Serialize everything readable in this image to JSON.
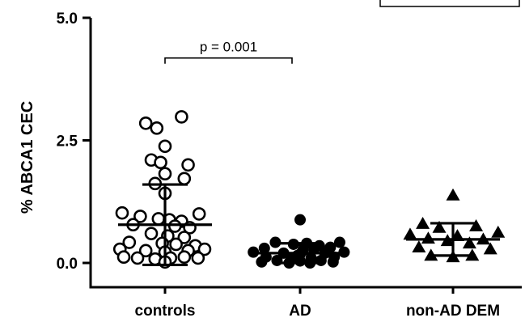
{
  "chart_data": {
    "type": "scatter",
    "ylabel": "% ABCA1 CEC",
    "ylim": [
      0,
      5.0
    ],
    "yticks": [
      {
        "value": 0.0,
        "label": "0.0"
      },
      {
        "value": 2.5,
        "label": "2.5"
      },
      {
        "value": 5.0,
        "label": "5.0"
      }
    ],
    "categories": [
      "controls",
      "AD",
      "non-AD DEM"
    ],
    "annotation": {
      "text": "p = 0.001",
      "from": "controls",
      "to": "AD",
      "y": 4.18
    },
    "series": [
      {
        "category": "controls",
        "marker": "circle-open",
        "mean": 0.78,
        "sd": 0.82,
        "points": [
          [
            2.98,
            0.3
          ],
          [
            2.85,
            -0.35
          ],
          [
            2.75,
            -0.15
          ],
          [
            2.38,
            0.0
          ],
          [
            2.1,
            -0.25
          ],
          [
            2.05,
            -0.08
          ],
          [
            2.0,
            0.42
          ],
          [
            1.82,
            0.0
          ],
          [
            1.72,
            0.35
          ],
          [
            1.62,
            -0.18
          ],
          [
            1.42,
            0.0
          ],
          [
            1.02,
            -0.78
          ],
          [
            1.0,
            0.62
          ],
          [
            0.95,
            -0.45
          ],
          [
            0.9,
            -0.12
          ],
          [
            0.88,
            0.08
          ],
          [
            0.85,
            0.3
          ],
          [
            0.78,
            -0.58
          ],
          [
            0.75,
            0.18
          ],
          [
            0.72,
            0.45
          ],
          [
            0.6,
            -0.25
          ],
          [
            0.55,
            0.05
          ],
          [
            0.52,
            0.35
          ],
          [
            0.42,
            -0.65
          ],
          [
            0.4,
            -0.05
          ],
          [
            0.38,
            0.2
          ],
          [
            0.35,
            0.55
          ],
          [
            0.28,
            -0.82
          ],
          [
            0.25,
            -0.35
          ],
          [
            0.22,
            0.0
          ],
          [
            0.25,
            0.42
          ],
          [
            0.28,
            0.72
          ],
          [
            0.12,
            -0.75
          ],
          [
            0.1,
            -0.5
          ],
          [
            0.08,
            -0.18
          ],
          [
            0.1,
            0.1
          ],
          [
            0.12,
            0.35
          ],
          [
            0.1,
            0.6
          ],
          [
            0.02,
            0.0
          ]
        ]
      },
      {
        "category": "AD",
        "marker": "circle-filled",
        "mean": 0.2,
        "sd": 0.2,
        "points": [
          [
            0.88,
            0.0
          ],
          [
            0.42,
            -0.45
          ],
          [
            0.4,
            0.12
          ],
          [
            0.42,
            0.72
          ],
          [
            0.38,
            -0.12
          ],
          [
            0.35,
            0.35
          ],
          [
            0.3,
            -0.65
          ],
          [
            0.28,
            0.25
          ],
          [
            0.32,
            0.55
          ],
          [
            0.22,
            -0.85
          ],
          [
            0.2,
            -0.3
          ],
          [
            0.18,
            0.0
          ],
          [
            0.2,
            0.45
          ],
          [
            0.22,
            0.8
          ],
          [
            0.12,
            -0.62
          ],
          [
            0.1,
            -0.15
          ],
          [
            0.1,
            0.2
          ],
          [
            0.12,
            0.62
          ],
          [
            0.05,
            -0.42
          ],
          [
            0.04,
            0.0
          ],
          [
            0.05,
            0.38
          ],
          [
            0.0,
            -0.2
          ],
          [
            0.0,
            0.18
          ],
          [
            0.02,
            -0.7
          ],
          [
            0.02,
            0.6
          ],
          [
            0.15,
            -0.05
          ],
          [
            0.25,
            0.05
          ]
        ]
      },
      {
        "category": "non-AD DEM",
        "marker": "triangle-filled",
        "mean": 0.48,
        "sd": 0.33,
        "points": [
          [
            1.38,
            0.0
          ],
          [
            0.8,
            -0.55
          ],
          [
            0.75,
            0.42
          ],
          [
            0.72,
            -0.25
          ],
          [
            0.62,
            0.82
          ],
          [
            0.58,
            -0.78
          ],
          [
            0.55,
            0.08
          ],
          [
            0.5,
            -0.45
          ],
          [
            0.48,
            0.55
          ],
          [
            0.45,
            -0.1
          ],
          [
            0.4,
            0.3
          ],
          [
            0.32,
            -0.62
          ],
          [
            0.28,
            0.68
          ],
          [
            0.15,
            -0.4
          ],
          [
            0.12,
            0.0
          ],
          [
            0.15,
            0.35
          ]
        ]
      }
    ]
  }
}
